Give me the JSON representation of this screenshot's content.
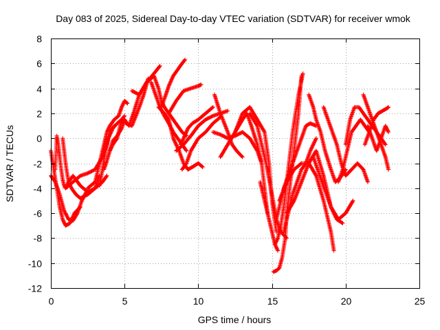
{
  "chart_data": {
    "type": "scatter",
    "title": "Day 083 of 2025, Sidereal Day-to-day VTEC variation (SDTVAR) for receiver wmok",
    "xlabel": "GPS time / hours",
    "ylabel": "SDTVAR / TECUs",
    "xlim": [
      0,
      25
    ],
    "ylim": [
      -12,
      8
    ],
    "xticks": [
      "0",
      "5",
      "10",
      "15",
      "20",
      "25"
    ],
    "yticks": [
      "8",
      "6",
      "4",
      "2",
      "0",
      "-2",
      "-4",
      "-6",
      "-8",
      "-10",
      "-12"
    ],
    "grid": true,
    "marker": "plus",
    "color": "#ff0000",
    "series": [
      {
        "x": [
          0.0,
          0.2,
          0.4,
          0.6,
          0.8,
          1.0,
          1.3,
          1.6,
          2.0
        ],
        "y": [
          -1.0,
          -2.5,
          -4.0,
          -5.5,
          -6.5,
          -7.0,
          -6.8,
          -6.0,
          -5.5
        ]
      },
      {
        "x": [
          0.0,
          0.3,
          0.6,
          0.9,
          1.2,
          1.5,
          1.8,
          2.1,
          2.4
        ],
        "y": [
          -3.0,
          -3.5,
          -4.5,
          -5.8,
          -6.5,
          -6.6,
          -6.0,
          -5.0,
          -4.3
        ]
      },
      {
        "x": [
          0.3,
          0.4,
          0.5,
          0.6,
          0.7,
          0.8,
          0.9,
          1.0,
          1.2,
          1.5,
          2.0,
          2.5,
          3.0,
          3.3
        ],
        "y": [
          -2.5,
          0.2,
          -0.5,
          -1.5,
          -2.5,
          -3.3,
          -3.8,
          -4.0,
          -3.5,
          -3.0,
          -3.8,
          -4.3,
          -4.0,
          -3.0
        ]
      },
      {
        "x": [
          0.8,
          0.9,
          1.0,
          1.1,
          1.2,
          1.4,
          1.7,
          2.0,
          2.5,
          3.0,
          3.5,
          3.8
        ],
        "y": [
          0.0,
          -1.0,
          -2.0,
          -2.8,
          -3.5,
          -4.0,
          -4.5,
          -4.8,
          -4.5,
          -4.0,
          -3.5,
          -3.0
        ]
      },
      {
        "x": [
          1.0,
          1.5,
          2.0,
          2.5,
          3.0,
          3.5,
          3.8,
          4.0,
          4.3
        ],
        "y": [
          -4.0,
          -3.5,
          -3.0,
          -2.8,
          -2.5,
          -1.5,
          -0.5,
          0.5,
          1.0
        ]
      },
      {
        "x": [
          2.5,
          3.0,
          3.3,
          3.6,
          3.8,
          4.0,
          4.3,
          4.6,
          4.8,
          5.0,
          5.2
        ],
        "y": [
          -4.0,
          -3.5,
          -2.0,
          -0.5,
          0.5,
          1.0,
          1.5,
          1.8,
          2.5,
          3.0,
          2.8
        ]
      },
      {
        "x": [
          3.3,
          3.5,
          3.7,
          3.9,
          4.2,
          4.5,
          4.8,
          5.1,
          5.5,
          6.0,
          6.3,
          6.6
        ],
        "y": [
          -3.8,
          -2.5,
          -1.0,
          0.0,
          0.8,
          1.2,
          1.5,
          1.2,
          1.0,
          2.5,
          3.5,
          4.8
        ]
      },
      {
        "x": [
          3.6,
          3.8,
          4.0,
          4.2,
          4.5,
          4.8,
          5.0
        ],
        "y": [
          -2.5,
          -1.8,
          -1.0,
          -0.5,
          0.0,
          1.5,
          1.8
        ]
      },
      {
        "x": [
          4.0,
          4.2,
          4.5,
          4.8,
          5.0,
          5.3,
          5.6,
          6.0,
          6.5,
          7.0,
          7.4
        ],
        "y": [
          -1.0,
          -0.2,
          0.2,
          0.8,
          1.5,
          1.0,
          2.0,
          3.5,
          4.5,
          5.2,
          5.8
        ]
      },
      {
        "x": [
          5.5,
          6.0,
          6.5,
          7.0,
          7.3,
          7.5,
          7.7,
          8.0,
          8.3,
          8.6,
          8.9,
          9.2
        ],
        "y": [
          3.8,
          3.5,
          4.5,
          5.0,
          4.0,
          3.0,
          2.5,
          2.0,
          1.5,
          1.0,
          0.5,
          0.2
        ]
      },
      {
        "x": [
          6.8,
          7.1,
          7.4,
          7.7,
          8.0,
          8.3,
          8.6,
          8.9,
          9.2
        ],
        "y": [
          4.5,
          3.5,
          2.5,
          1.8,
          1.2,
          0.5,
          0.0,
          -0.5,
          -1.0
        ]
      },
      {
        "x": [
          7.5,
          7.8,
          8.0,
          8.3,
          8.6,
          8.9,
          9.1
        ],
        "y": [
          2.5,
          3.5,
          4.2,
          5.0,
          5.5,
          6.0,
          6.3
        ]
      },
      {
        "x": [
          7.3,
          7.7,
          8.0,
          8.3,
          8.7,
          9.0,
          9.3,
          9.6,
          10.0,
          10.3
        ],
        "y": [
          2.5,
          2.0,
          1.5,
          0.0,
          -1.0,
          -2.0,
          -2.5,
          -2.3,
          -2.0,
          -2.3
        ]
      },
      {
        "x": [
          8.0,
          8.5,
          9.0,
          9.5,
          10.0,
          10.2
        ],
        "y": [
          2.0,
          3.0,
          3.8,
          4.0,
          4.2,
          4.3
        ]
      },
      {
        "x": [
          8.5,
          9.0,
          9.5,
          10.0,
          10.5,
          11.0,
          11.5,
          12.0
        ],
        "y": [
          -1.0,
          -0.5,
          0.2,
          1.0,
          1.5,
          1.8,
          2.0,
          2.2
        ]
      },
      {
        "x": [
          8.8,
          9.0,
          9.3,
          9.6,
          10.0,
          10.5,
          11.0
        ],
        "y": [
          -0.5,
          0.0,
          0.8,
          1.2,
          1.5,
          2.0,
          2.5
        ]
      },
      {
        "x": [
          8.9,
          9.2,
          9.5,
          10.0,
          10.5,
          11.0,
          11.5
        ],
        "y": [
          -2.5,
          -2.0,
          -1.0,
          0.0,
          0.5,
          1.2,
          1.7
        ]
      },
      {
        "x": [
          11.1,
          11.5,
          12.0,
          12.3,
          12.6,
          13.0
        ],
        "y": [
          3.5,
          2.0,
          0.5,
          -0.5,
          -1.0,
          -1.5
        ]
      },
      {
        "x": [
          11.0,
          11.5,
          12.0,
          12.5,
          13.0,
          13.5,
          14.0,
          14.3
        ],
        "y": [
          0.5,
          0.3,
          0.0,
          0.2,
          0.5,
          0.0,
          -1.0,
          -2.0
        ]
      },
      {
        "x": [
          11.5,
          12.0,
          12.5,
          13.0,
          13.3,
          13.6,
          14.0,
          14.3,
          14.5,
          14.7
        ],
        "y": [
          -1.5,
          -0.5,
          0.5,
          1.5,
          2.0,
          1.0,
          -0.5,
          -2.0,
          -4.0,
          -6.0
        ]
      },
      {
        "x": [
          12.5,
          13.0,
          13.5,
          14.0,
          14.5,
          14.8,
          15.0,
          15.3
        ],
        "y": [
          0.5,
          2.0,
          2.5,
          1.5,
          0.5,
          -2.0,
          -5.0,
          -7.5
        ]
      },
      {
        "x": [
          13.5,
          14.0,
          14.3,
          14.6,
          15.0,
          15.3,
          15.6,
          16.0
        ],
        "y": [
          2.0,
          1.0,
          -0.5,
          -2.0,
          -4.5,
          -6.5,
          -7.5,
          -8.0
        ]
      },
      {
        "x": [
          14.2,
          14.4,
          14.6,
          14.8,
          15.0,
          15.2,
          15.4
        ],
        "y": [
          -3.5,
          -4.5,
          -5.5,
          -6.5,
          -7.5,
          -8.5,
          -9.0
        ]
      },
      {
        "x": [
          15.1,
          15.3,
          15.5,
          15.7,
          15.9,
          16.0,
          16.2,
          16.4,
          16.6,
          16.8,
          17.0
        ],
        "y": [
          -10.7,
          -10.6,
          -10.4,
          -9.5,
          -8.0,
          -6.0,
          -4.0,
          -2.0,
          0.0,
          2.0,
          5.0
        ]
      },
      {
        "x": [
          15.2,
          15.4,
          15.6,
          15.8,
          16.0,
          16.2,
          16.4,
          16.6,
          16.8,
          17.1
        ],
        "y": [
          -8.5,
          -8.0,
          -7.0,
          -5.5,
          -3.5,
          -1.5,
          0.5,
          2.0,
          3.5,
          5.2
        ]
      },
      {
        "x": [
          15.3,
          15.5,
          15.8,
          16.1,
          16.4,
          16.7,
          17.0,
          17.3,
          17.6,
          18.0
        ],
        "y": [
          -6.5,
          -5.5,
          -4.0,
          -3.0,
          -2.0,
          -1.0,
          0.0,
          1.0,
          1.2,
          1.0
        ]
      },
      {
        "x": [
          15.5,
          16.0,
          16.5,
          17.0,
          17.5,
          18.0,
          18.5,
          19.0,
          19.2
        ],
        "y": [
          -5.0,
          -3.5,
          -2.5,
          -2.0,
          -2.0,
          -3.0,
          -5.0,
          -7.5,
          -9.0
        ]
      },
      {
        "x": [
          15.8,
          16.1,
          16.4,
          16.7,
          17.0,
          17.3,
          17.6,
          18.0
        ],
        "y": [
          -7.5,
          -6.0,
          -4.5,
          -3.5,
          -2.5,
          -2.0,
          -1.0,
          0.0
        ]
      },
      {
        "x": [
          16.0,
          16.5,
          17.0,
          17.5,
          18.0,
          18.5,
          19.0,
          19.5,
          20.0,
          20.5
        ],
        "y": [
          -6.0,
          -5.0,
          -3.5,
          -2.0,
          -1.0,
          -3.0,
          -5.5,
          -6.5,
          -6.0,
          -5.0
        ]
      },
      {
        "x": [
          17.5,
          17.8,
          18.0,
          18.3,
          18.6,
          19.0,
          19.3,
          19.6,
          20.0
        ],
        "y": [
          3.5,
          2.5,
          1.5,
          0.5,
          -1.0,
          -2.5,
          -3.5,
          -3.2,
          -2.5
        ]
      },
      {
        "x": [
          17.8,
          18.1,
          18.4,
          18.7,
          19.0,
          19.4,
          19.8
        ],
        "y": [
          -1.5,
          -2.5,
          -3.5,
          -4.5,
          -5.5,
          -6.5,
          -6.8
        ]
      },
      {
        "x": [
          18.5,
          18.8,
          19.1,
          19.4,
          19.7,
          20.0,
          20.4,
          20.8,
          21.2,
          21.5
        ],
        "y": [
          2.5,
          1.5,
          0.5,
          -0.5,
          -2.0,
          -3.0,
          -2.5,
          -2.0,
          -2.5,
          -3.5
        ]
      },
      {
        "x": [
          19.5,
          19.8,
          20.1,
          20.4,
          20.7,
          21.0,
          21.3,
          21.6
        ],
        "y": [
          -3.5,
          -2.5,
          -1.0,
          0.5,
          1.0,
          1.5,
          1.0,
          0.5
        ]
      },
      {
        "x": [
          20.0,
          20.3,
          20.6,
          20.9,
          21.2,
          21.5,
          21.8,
          22.1,
          22.4,
          22.7
        ],
        "y": [
          -0.5,
          1.5,
          2.5,
          2.5,
          2.0,
          1.5,
          1.0,
          0.5,
          0.0,
          -0.5
        ]
      },
      {
        "x": [
          21.2,
          21.5,
          21.8,
          22.1,
          22.4,
          22.7,
          22.9
        ],
        "y": [
          3.5,
          2.5,
          1.5,
          0.5,
          -0.5,
          -1.5,
          -2.5
        ]
      },
      {
        "x": [
          21.3,
          21.6,
          21.9,
          22.2,
          22.5,
          22.8,
          22.9
        ],
        "y": [
          -0.5,
          0.5,
          1.5,
          2.0,
          2.2,
          2.4,
          2.5
        ]
      },
      {
        "x": [
          21.5,
          21.8,
          22.1,
          22.4,
          22.7,
          22.9
        ],
        "y": [
          1.0,
          0.0,
          -1.0,
          0.0,
          1.0,
          0.5
        ]
      }
    ]
  }
}
